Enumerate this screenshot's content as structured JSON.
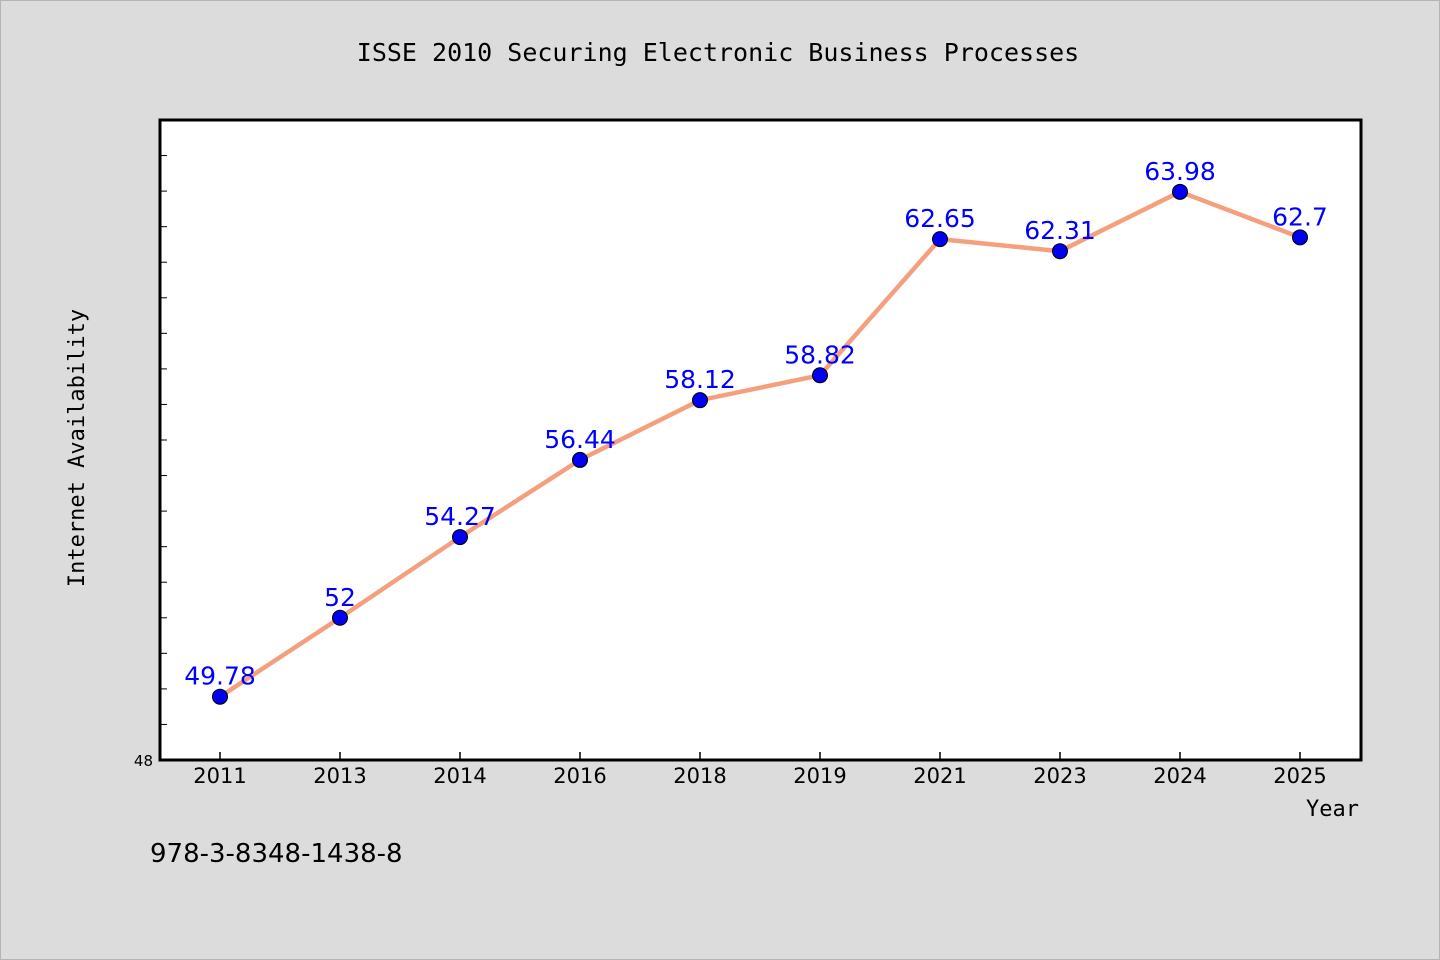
{
  "chart_data": {
    "type": "line",
    "title": "ISSE 2010 Securing Electronic Business Processes",
    "xlabel": "Year",
    "ylabel": "Internet Availability",
    "categories": [
      "2011",
      "2013",
      "2014",
      "2016",
      "2018",
      "2019",
      "2021",
      "2023",
      "2024",
      "2025"
    ],
    "series": [
      {
        "values": [
          49.78,
          52,
          54.27,
          56.44,
          58.12,
          58.82,
          62.65,
          62.31,
          63.98,
          62.7
        ],
        "data_labels": [
          "49.78",
          "52",
          "54.27",
          "56.44",
          "58.12",
          "58.82",
          "62.65",
          "62.31",
          "63.98",
          "62.7"
        ]
      }
    ],
    "ylim": [
      48,
      66
    ],
    "y_min_label": "48",
    "grid": false,
    "legend": "none",
    "colors": {
      "line": "#f4a07e",
      "marker": "#0000ee",
      "label": "#0000ff",
      "background": "#dcdcdc",
      "plot_background": "#ffffff"
    }
  },
  "footnote": "978-3-8348-1438-8"
}
